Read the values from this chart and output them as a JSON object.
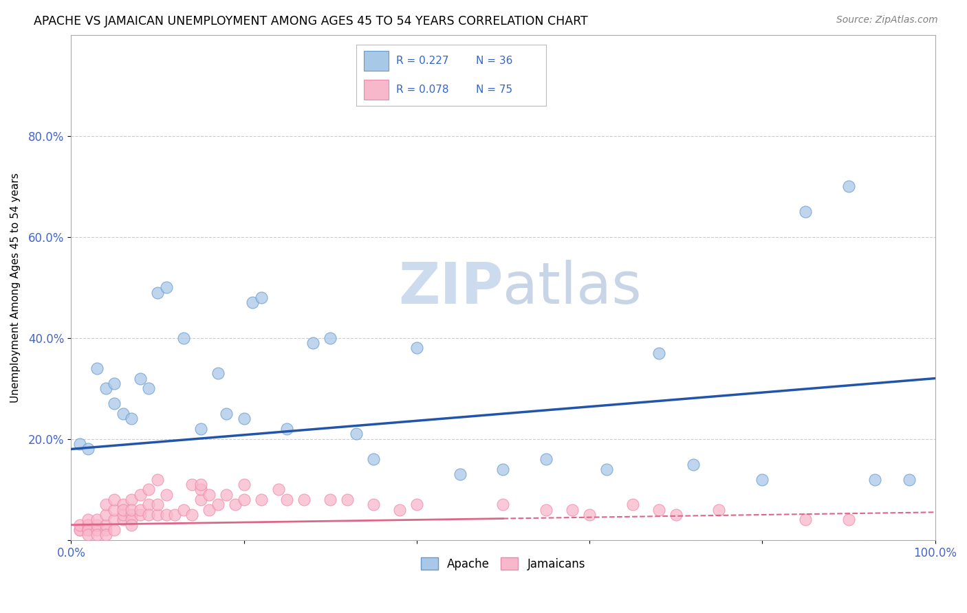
{
  "title": "APACHE VS JAMAICAN UNEMPLOYMENT AMONG AGES 45 TO 54 YEARS CORRELATION CHART",
  "source": "Source: ZipAtlas.com",
  "ylabel": "Unemployment Among Ages 45 to 54 years",
  "xlim": [
    0,
    1.0
  ],
  "ylim": [
    0,
    1.0
  ],
  "xtick_positions": [
    0.0,
    0.2,
    0.4,
    0.6,
    0.8,
    1.0
  ],
  "xticklabels": [
    "0.0%",
    "",
    "",
    "",
    "",
    "100.0%"
  ],
  "ytick_positions": [
    0.0,
    0.2,
    0.4,
    0.6,
    0.8
  ],
  "yticklabels": [
    "",
    "20.0%",
    "40.0%",
    "60.0%",
    "80.0%"
  ],
  "apache_R": "0.227",
  "apache_N": "36",
  "jamaican_R": "0.078",
  "jamaican_N": "75",
  "apache_color": "#a8c8e8",
  "apache_edge_color": "#6699cc",
  "jamaican_color": "#f8b8cc",
  "jamaican_edge_color": "#ee88aa",
  "apache_line_color": "#2255aa",
  "jamaican_line_color": "#dd6688",
  "legend_text_color": "#3366cc",
  "watermark_color": "#c8d8ee",
  "background_color": "#ffffff",
  "grid_color": "#cccccc",
  "apache_x": [
    0.01,
    0.02,
    0.03,
    0.04,
    0.05,
    0.05,
    0.06,
    0.07,
    0.08,
    0.09,
    0.1,
    0.11,
    0.13,
    0.15,
    0.17,
    0.18,
    0.2,
    0.21,
    0.22,
    0.25,
    0.28,
    0.3,
    0.33,
    0.35,
    0.4,
    0.45,
    0.5,
    0.55,
    0.62,
    0.68,
    0.72,
    0.8,
    0.85,
    0.9,
    0.93,
    0.97
  ],
  "apache_y": [
    0.19,
    0.18,
    0.34,
    0.3,
    0.31,
    0.27,
    0.25,
    0.24,
    0.32,
    0.3,
    0.49,
    0.5,
    0.4,
    0.22,
    0.33,
    0.25,
    0.24,
    0.47,
    0.48,
    0.22,
    0.39,
    0.4,
    0.21,
    0.16,
    0.38,
    0.13,
    0.14,
    0.16,
    0.14,
    0.37,
    0.15,
    0.12,
    0.65,
    0.7,
    0.12,
    0.12
  ],
  "jamaican_x": [
    0.01,
    0.01,
    0.01,
    0.02,
    0.02,
    0.02,
    0.02,
    0.02,
    0.02,
    0.03,
    0.03,
    0.03,
    0.03,
    0.04,
    0.04,
    0.04,
    0.04,
    0.04,
    0.05,
    0.05,
    0.05,
    0.05,
    0.06,
    0.06,
    0.06,
    0.06,
    0.07,
    0.07,
    0.07,
    0.07,
    0.07,
    0.08,
    0.08,
    0.08,
    0.09,
    0.09,
    0.09,
    0.1,
    0.1,
    0.1,
    0.11,
    0.11,
    0.12,
    0.13,
    0.14,
    0.14,
    0.15,
    0.15,
    0.15,
    0.16,
    0.16,
    0.17,
    0.18,
    0.19,
    0.2,
    0.2,
    0.22,
    0.24,
    0.25,
    0.27,
    0.3,
    0.32,
    0.35,
    0.38,
    0.4,
    0.5,
    0.55,
    0.58,
    0.6,
    0.65,
    0.68,
    0.7,
    0.75,
    0.85,
    0.9
  ],
  "jamaican_y": [
    0.02,
    0.02,
    0.03,
    0.02,
    0.03,
    0.03,
    0.02,
    0.01,
    0.04,
    0.02,
    0.03,
    0.01,
    0.04,
    0.02,
    0.03,
    0.01,
    0.05,
    0.07,
    0.04,
    0.06,
    0.02,
    0.08,
    0.04,
    0.07,
    0.05,
    0.06,
    0.05,
    0.04,
    0.08,
    0.06,
    0.03,
    0.05,
    0.09,
    0.06,
    0.07,
    0.05,
    0.1,
    0.05,
    0.07,
    0.12,
    0.05,
    0.09,
    0.05,
    0.06,
    0.05,
    0.11,
    0.08,
    0.1,
    0.11,
    0.09,
    0.06,
    0.07,
    0.09,
    0.07,
    0.08,
    0.11,
    0.08,
    0.1,
    0.08,
    0.08,
    0.08,
    0.08,
    0.07,
    0.06,
    0.07,
    0.07,
    0.06,
    0.06,
    0.05,
    0.07,
    0.06,
    0.05,
    0.06,
    0.04,
    0.04
  ],
  "apache_line_x0": 0.0,
  "apache_line_y0": 0.18,
  "apache_line_x1": 1.0,
  "apache_line_y1": 0.32,
  "jamaican_line_solid_x0": 0.0,
  "jamaican_line_solid_x1": 0.5,
  "jamaican_line_dash_x0": 0.5,
  "jamaican_line_dash_x1": 1.0,
  "jamaican_line_y0": 0.03,
  "jamaican_line_y1": 0.055
}
